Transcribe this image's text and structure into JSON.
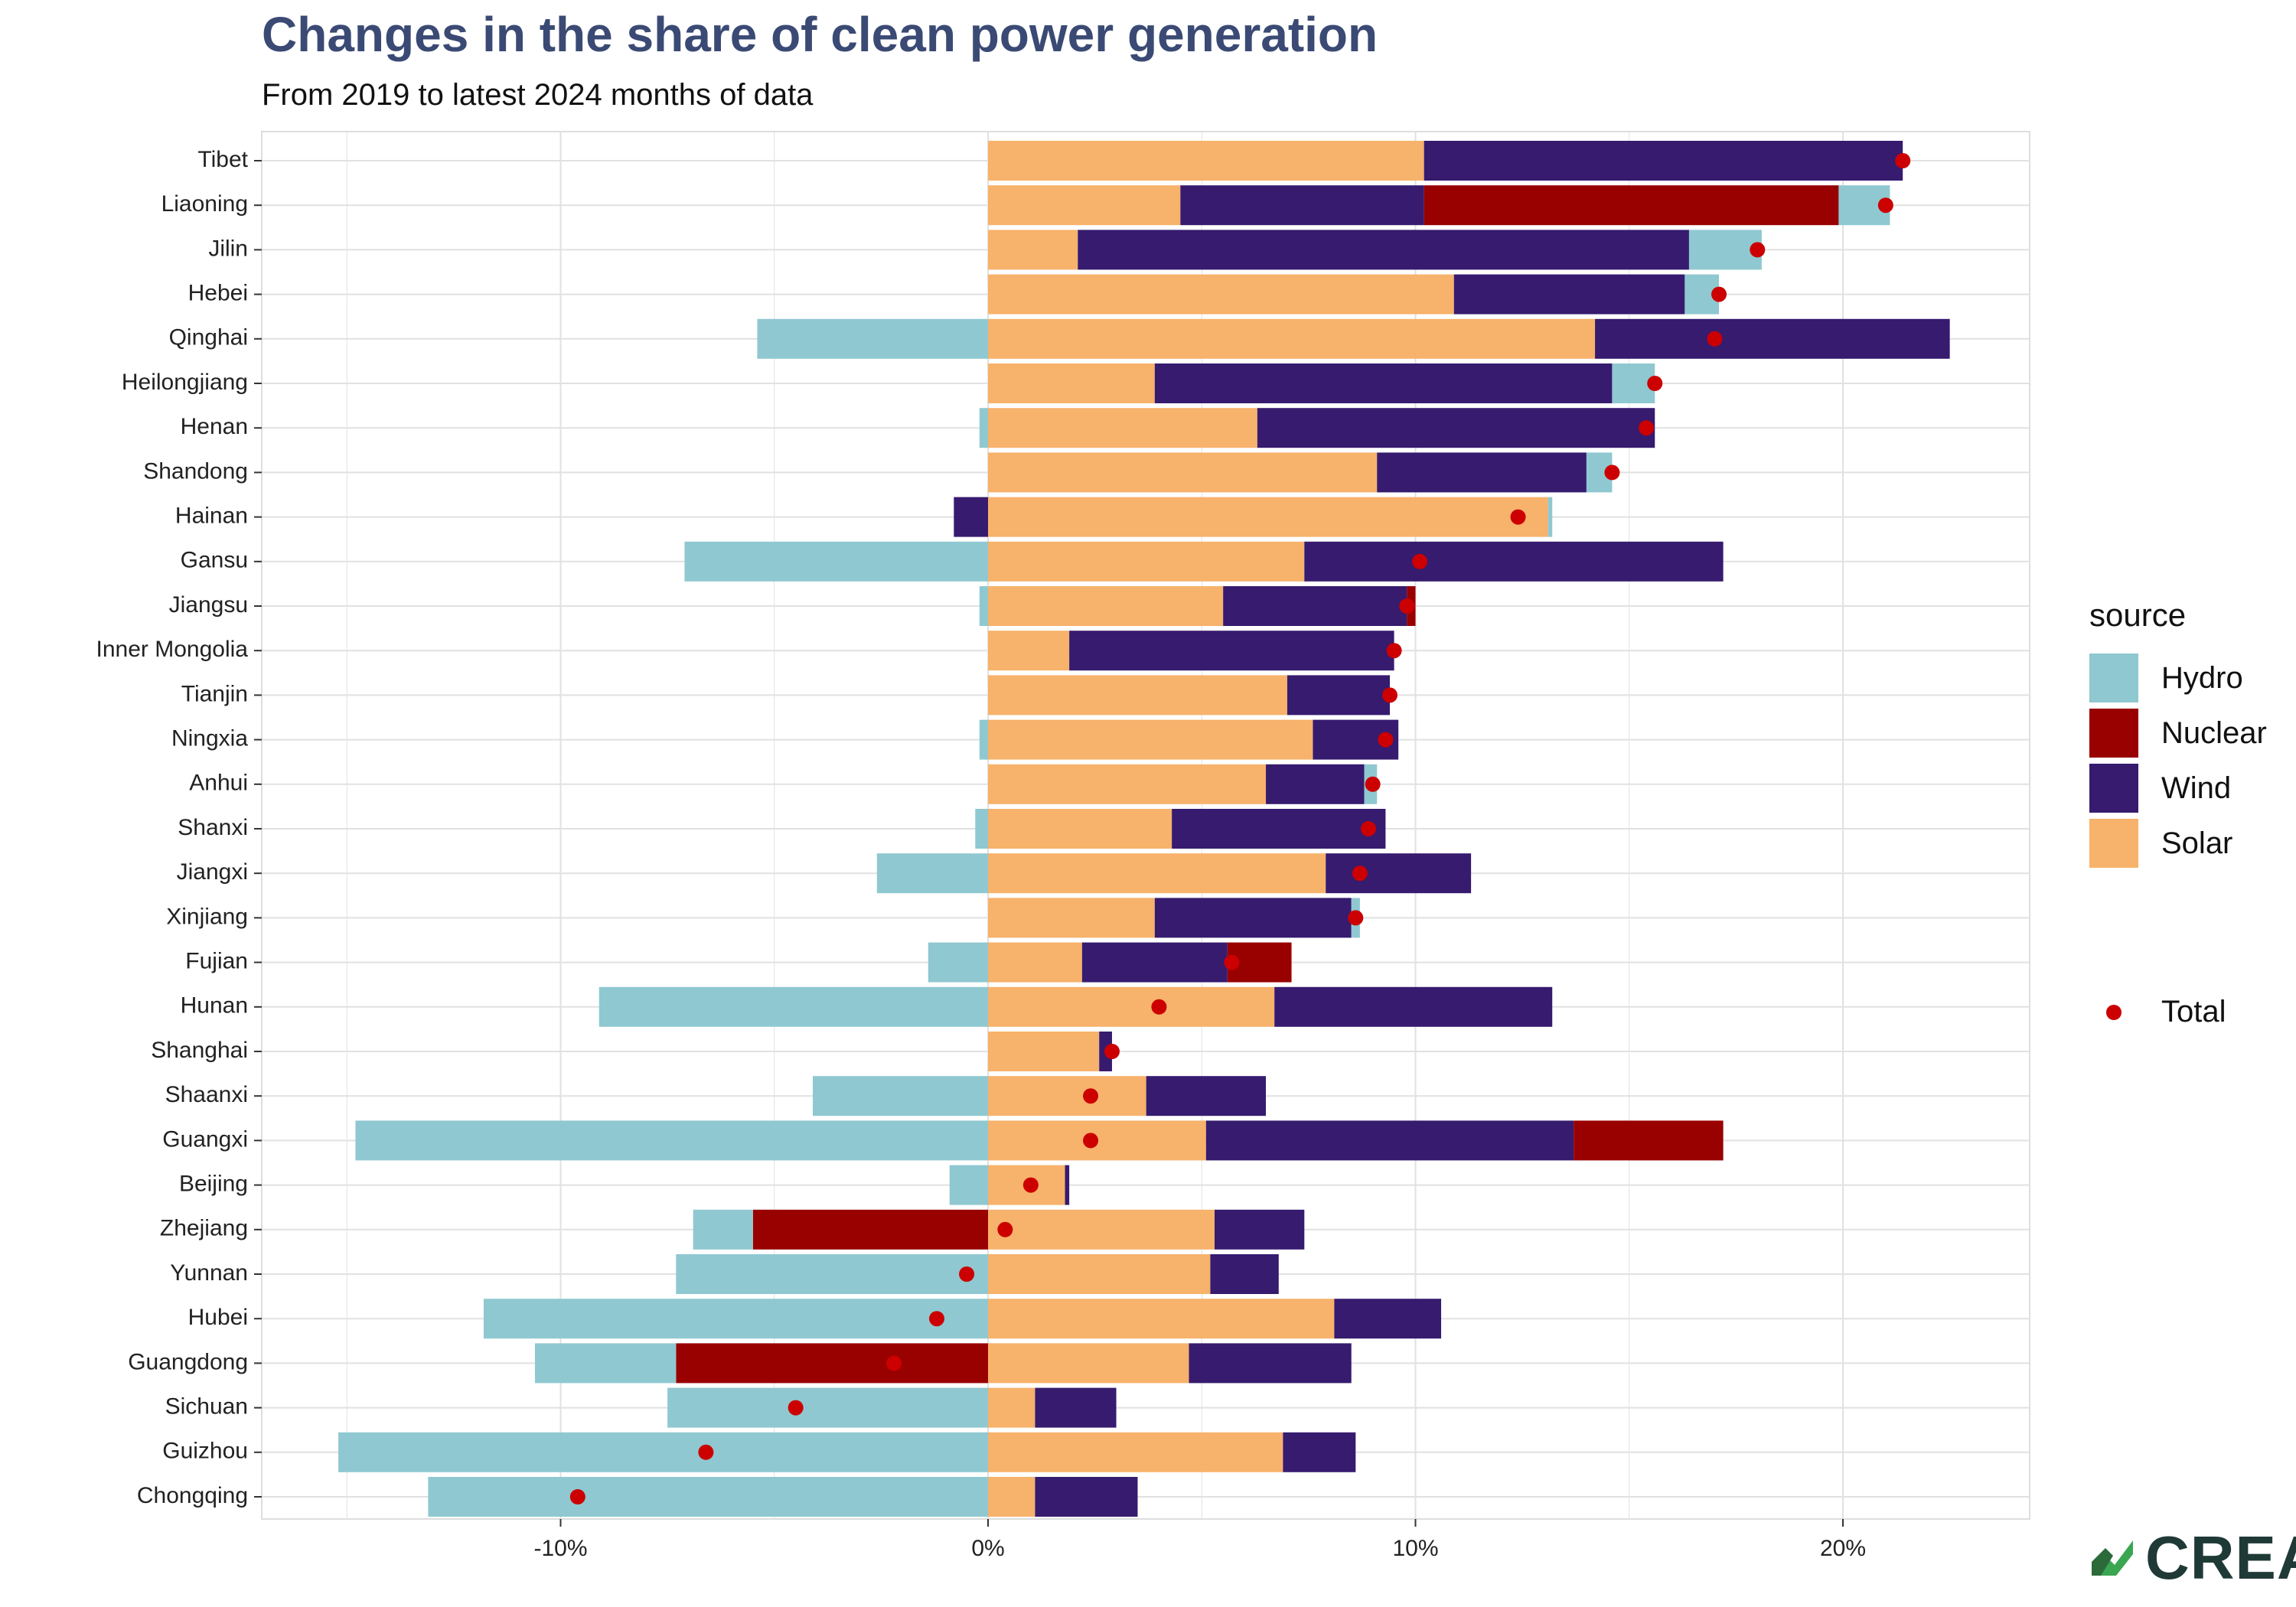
{
  "header": {
    "title": "Changes in the share of clean power generation",
    "subtitle": "From 2019 to latest 2024 months of data"
  },
  "legend": {
    "title": "source",
    "items": [
      {
        "label": "Hydro",
        "color": "#8fc8d0"
      },
      {
        "label": "Nuclear",
        "color": "#990000"
      },
      {
        "label": "Wind",
        "color": "#361b6f"
      },
      {
        "label": "Solar",
        "color": "#f7b26b"
      }
    ],
    "total_label": "Total",
    "total_color": "#cc0000"
  },
  "logo": {
    "text": "CREA",
    "icon": "crea-leaf-icon"
  },
  "chart_data": {
    "type": "bar",
    "orientation": "horizontal",
    "stacked": true,
    "title": "Changes in the share of clean power generation",
    "subtitle": "From 2019 to latest 2024 months of data",
    "xlabel": "",
    "ylabel": "",
    "xlim": [
      -17,
      24
    ],
    "x_ticks": [
      -10,
      0,
      10,
      20
    ],
    "x_tick_labels": [
      "-10%",
      "0%",
      "10%",
      "20%"
    ],
    "grid": true,
    "legend_position": "right",
    "categories": [
      "Tibet",
      "Liaoning",
      "Jilin",
      "Hebei",
      "Qinghai",
      "Heilongjiang",
      "Henan",
      "Shandong",
      "Hainan",
      "Gansu",
      "Jiangsu",
      "Inner Mongolia",
      "Tianjin",
      "Ningxia",
      "Anhui",
      "Shanxi",
      "Jiangxi",
      "Xinjiang",
      "Fujian",
      "Hunan",
      "Shanghai",
      "Shaanxi",
      "Guangxi",
      "Beijing",
      "Zhejiang",
      "Yunnan",
      "Hubei",
      "Guangdong",
      "Sichuan",
      "Guizhou",
      "Chongqing"
    ],
    "series": [
      {
        "name": "Solar",
        "values": [
          10.2,
          4.5,
          2.1,
          10.9,
          14.2,
          3.9,
          6.3,
          9.1,
          13.1,
          7.4,
          5.5,
          1.9,
          7.0,
          7.6,
          6.5,
          4.3,
          7.9,
          3.9,
          2.2,
          6.7,
          2.6,
          3.7,
          5.1,
          1.8,
          5.3,
          5.2,
          8.1,
          4.7,
          1.1,
          6.9,
          1.1
        ]
      },
      {
        "name": "Wind",
        "values": [
          11.2,
          5.7,
          14.3,
          5.4,
          8.3,
          10.7,
          9.3,
          4.9,
          -0.8,
          9.8,
          4.3,
          7.6,
          2.4,
          2.0,
          2.3,
          5.0,
          3.4,
          4.6,
          3.4,
          6.5,
          0.3,
          2.8,
          8.6,
          0.1,
          2.1,
          1.6,
          2.5,
          3.8,
          1.9,
          1.7,
          2.4
        ]
      },
      {
        "name": "Nuclear",
        "values": [
          0,
          9.7,
          0,
          0,
          0,
          0,
          0,
          0,
          0,
          0,
          0.2,
          0,
          0,
          0,
          0,
          0,
          0,
          0,
          1.5,
          0,
          0,
          0,
          3.5,
          0,
          -5.5,
          0,
          0,
          -7.3,
          0,
          0,
          0
        ]
      },
      {
        "name": "Hydro",
        "values": [
          0,
          1.2,
          1.7,
          0.8,
          -5.4,
          1.0,
          -0.2,
          0.6,
          0.1,
          -7.1,
          -0.2,
          0,
          0,
          -0.2,
          0.3,
          -0.3,
          -2.6,
          0.2,
          -1.4,
          -9.1,
          0,
          -4.1,
          -14.8,
          -0.9,
          -1.4,
          -7.3,
          -11.8,
          -3.3,
          -7.5,
          -15.2,
          -13.1
        ]
      }
    ],
    "total": [
      21.4,
      21.0,
      18.0,
      17.1,
      17.0,
      15.6,
      15.4,
      14.6,
      12.4,
      10.1,
      9.8,
      9.5,
      9.4,
      9.3,
      9.0,
      8.9,
      8.7,
      8.6,
      5.7,
      4.0,
      2.9,
      2.4,
      2.4,
      1.0,
      0.4,
      -0.5,
      -1.2,
      -2.2,
      -4.5,
      -6.6,
      -9.6
    ]
  }
}
